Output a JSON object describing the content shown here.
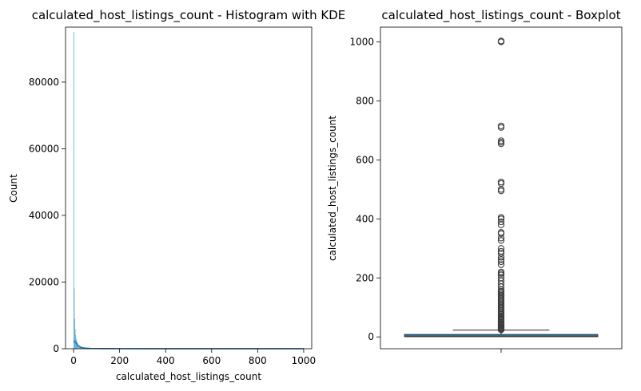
{
  "chart_data": [
    {
      "type": "histogram",
      "title": "calculated_host_listings_count - Histogram with KDE",
      "xlabel": "calculated_host_listings_count",
      "ylabel": "Count",
      "xlim": [
        -35,
        1035
      ],
      "ylim": [
        0,
        96500
      ],
      "xticks": [
        0,
        200,
        400,
        600,
        800,
        1000
      ],
      "yticks": [
        0,
        20000,
        40000,
        60000,
        80000
      ],
      "grid": false,
      "bars": {
        "bin_edges": [
          0,
          2,
          4,
          6,
          8,
          10,
          12,
          14,
          16,
          18,
          20,
          25,
          30,
          35,
          40,
          50,
          60,
          80,
          100,
          150,
          200,
          300,
          400,
          500,
          600,
          700,
          800,
          900,
          1000
        ],
        "counts": [
          95000,
          18000,
          9000,
          5800,
          4000,
          3000,
          2500,
          2000,
          1600,
          1300,
          1000,
          800,
          600,
          450,
          350,
          250,
          200,
          150,
          120,
          100,
          80,
          60,
          40,
          40,
          30,
          25,
          20,
          20
        ]
      },
      "kde": {
        "x": [
          0,
          5,
          10,
          15,
          20,
          25,
          30,
          40,
          50,
          75,
          100,
          150,
          200,
          300,
          400,
          500,
          600,
          700,
          800,
          900,
          1000
        ],
        "y": [
          2300,
          2200,
          1800,
          1300,
          900,
          650,
          450,
          250,
          160,
          90,
          60,
          40,
          30,
          20,
          15,
          12,
          10,
          8,
          6,
          5,
          4
        ]
      },
      "bar_color": "#5fa3d0",
      "kde_color": "#1f77b4"
    },
    {
      "type": "boxplot",
      "title": "calculated_host_listings_count - Boxplot",
      "xlabel": "",
      "ylabel": "calculated_host_listings_count",
      "ylim": [
        -40,
        1050
      ],
      "yticks": [
        0,
        200,
        400,
        600,
        800,
        1000
      ],
      "grid": false,
      "box": {
        "q1": 1,
        "median": 2,
        "q3": 8,
        "whisker_low": 1,
        "whisker_high": 23
      },
      "outliers": [
        24,
        26,
        28,
        30,
        32,
        35,
        38,
        40,
        43,
        46,
        50,
        53,
        57,
        60,
        64,
        68,
        72,
        76,
        80,
        85,
        90,
        95,
        100,
        105,
        110,
        115,
        120,
        125,
        130,
        135,
        140,
        145,
        150,
        155,
        160,
        170,
        180,
        190,
        200,
        210,
        215,
        220,
        245,
        255,
        262,
        270,
        283,
        290,
        300,
        327,
        335,
        350,
        354,
        380,
        390,
        400,
        405,
        495,
        500,
        520,
        525,
        655,
        660,
        665,
        710,
        715,
        1000,
        1003
      ],
      "box_color": "#1f77b4",
      "line_color": "#3d3d3d"
    }
  ]
}
